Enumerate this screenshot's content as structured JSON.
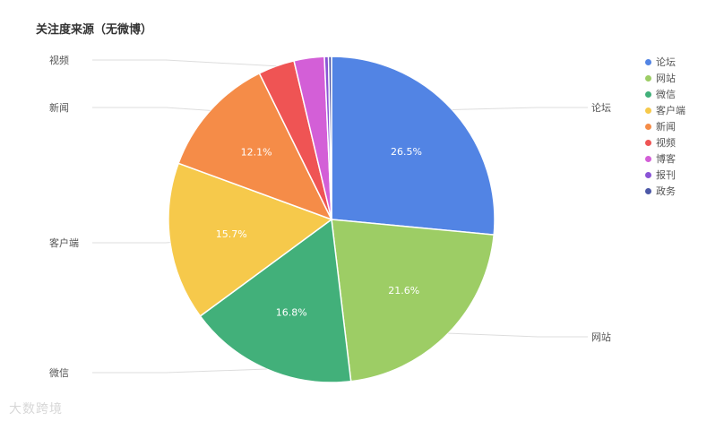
{
  "chart_data": {
    "type": "pie",
    "title": "关注度来源（无微博）",
    "slices": [
      {
        "label": "论坛",
        "value": 26.5,
        "display": "26.5%",
        "color": "#5284e4"
      },
      {
        "label": "网站",
        "value": 21.6,
        "display": "21.6%",
        "color": "#9dcd65"
      },
      {
        "label": "微信",
        "value": 16.8,
        "display": "16.8%",
        "color": "#42b07a"
      },
      {
        "label": "客户端",
        "value": 15.7,
        "display": "15.7%",
        "color": "#f6c94b"
      },
      {
        "label": "新闻",
        "value": 12.1,
        "display": "12.1%",
        "color": "#f58c48"
      },
      {
        "label": "视频",
        "value": 3.6,
        "display": "",
        "color": "#ef5454"
      },
      {
        "label": "博客",
        "value": 3.0,
        "display": "",
        "color": "#d35fd7"
      },
      {
        "label": "报刊",
        "value": 0.4,
        "display": "",
        "color": "#8a54d6"
      },
      {
        "label": "政务",
        "value": 0.3,
        "display": "",
        "color": "#4c58a7"
      }
    ],
    "legend_position": "top-right"
  },
  "watermark": "大数跨境"
}
